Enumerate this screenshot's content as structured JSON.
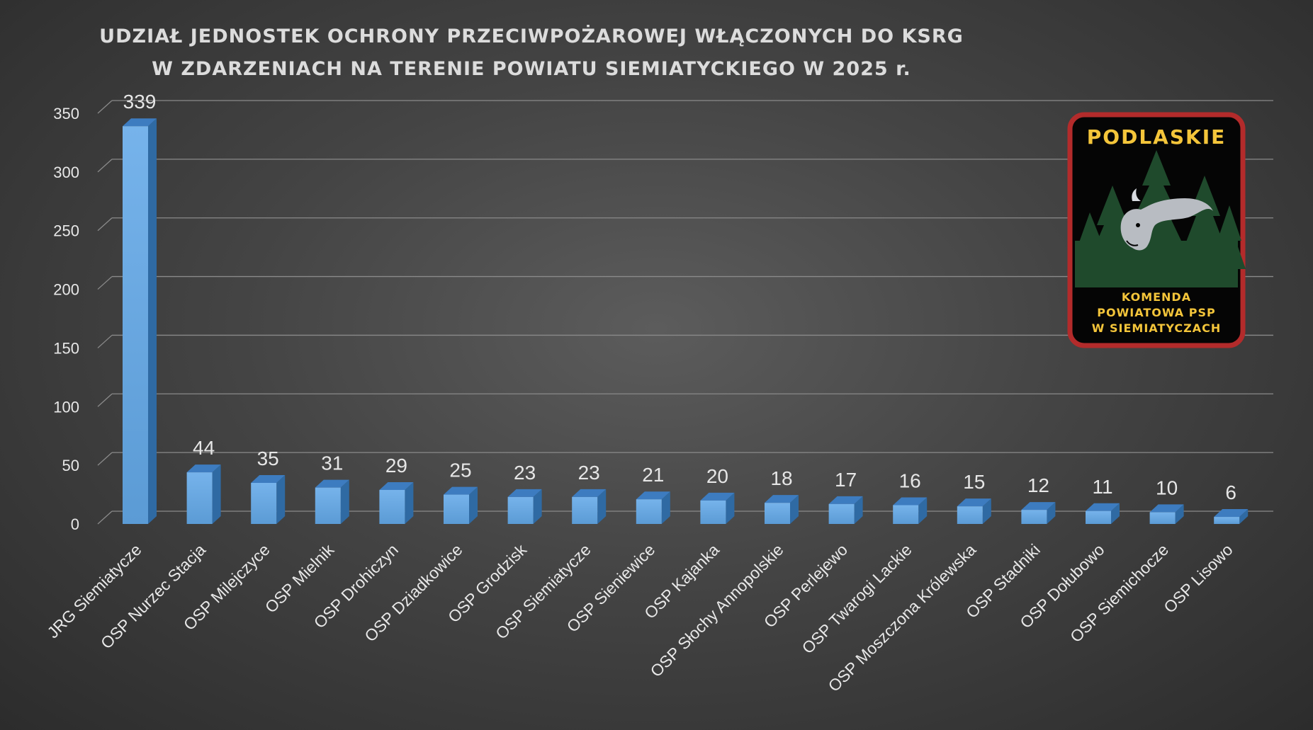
{
  "chart_data": {
    "type": "bar",
    "title_lines": [
      "UDZIAŁ JEDNOSTEK OCHRONY PRZECIWPOŻAROWEJ WŁĄCZONYCH DO KSRG",
      "W ZDARZENIACH NA TERENIE POWIATU SIEMIATYCKIEGO W 2025 r."
    ],
    "categories": [
      "JRG Siemiatycze",
      "OSP Nurzec Stacja",
      "OSP Milejczyce",
      "OSP Mielnik",
      "OSP Drohiczyn",
      "OSP Dziadkowice",
      "OSP Grodzisk",
      "OSP Siemiatycze",
      "OSP Sieniewice",
      "OSP Kajanka",
      "OSP Słochy Annopolskie",
      "OSP Perlejewo",
      "OSP Twarogi Lackie",
      "OSP Moszczona Królewska",
      "OSP Stadniki",
      "OSP Dołubowo",
      "OSP Siemichocze",
      "OSP Lisowo"
    ],
    "values": [
      339,
      44,
      35,
      31,
      29,
      25,
      23,
      23,
      21,
      20,
      18,
      17,
      16,
      15,
      12,
      11,
      10,
      6
    ],
    "value_labels": [
      "339",
      "44",
      "35",
      "31",
      "29",
      "25",
      "23",
      "23",
      "21",
      "20",
      "18",
      "17",
      "16",
      "15",
      "12",
      "11",
      "10",
      "6"
    ],
    "yticks": [
      "0",
      "50",
      "100",
      "150",
      "200",
      "250",
      "300",
      "350"
    ],
    "ylim": [
      0,
      350
    ],
    "grid": true,
    "colors": {
      "bar_front": "#5b9bd5",
      "bar_side": "#2f6aa3",
      "bar_top": "#3d7cc0"
    }
  },
  "badge": {
    "top_text": "PODLASKIE",
    "bottom_lines": [
      "KOMENDA",
      "POWIATOWA PSP",
      "W SIEMIATYCZACH"
    ],
    "colors": {
      "border": "#b32b2b",
      "bg": "#050505",
      "text": "#f4c53a",
      "forest": "#1f4a2c"
    }
  }
}
